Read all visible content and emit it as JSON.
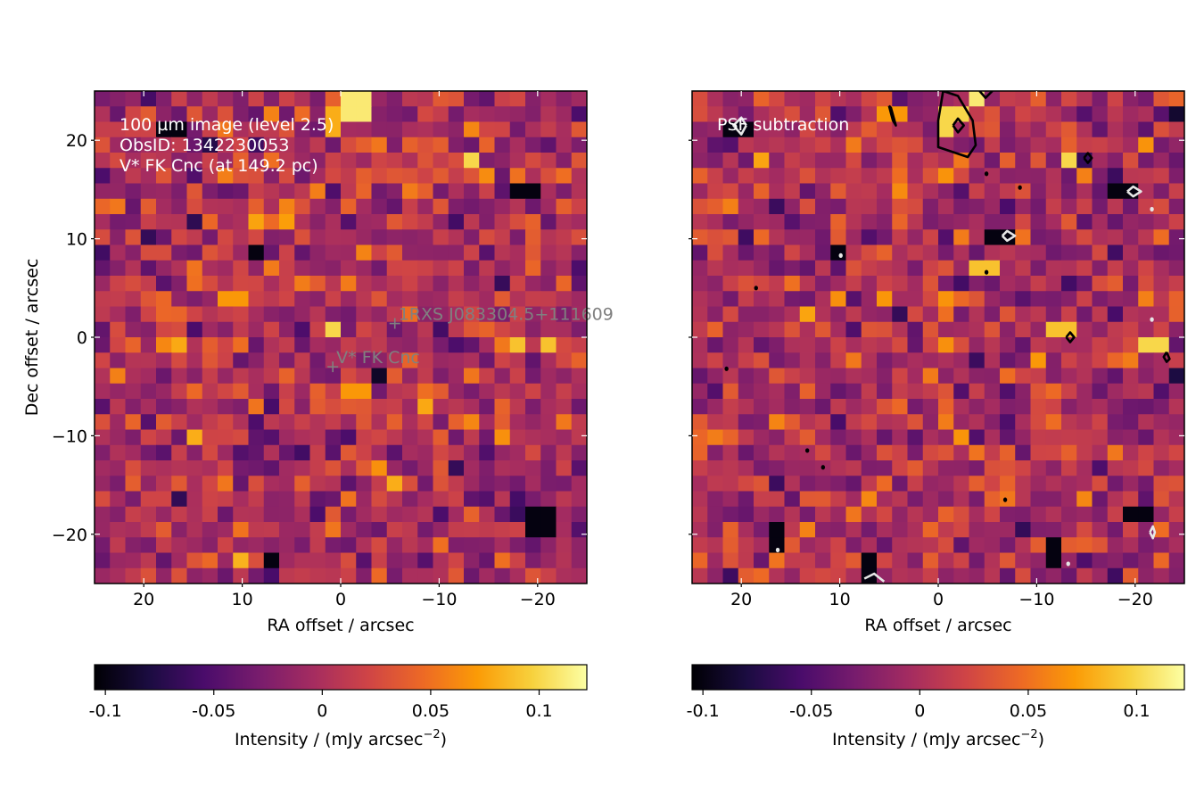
{
  "colors": {
    "inferno_stops": [
      "#000004",
      "#1b0c41",
      "#4a0c6b",
      "#781c6d",
      "#a52c60",
      "#cf4446",
      "#ed6925",
      "#fb9b06",
      "#f7d13d",
      "#fcffa4"
    ],
    "marker": "#808080",
    "annotation_text": "#ffffff",
    "contour_positive": "#000000",
    "contour_negative": "#e6e6e6"
  },
  "chart_data": [
    {
      "type": "heatmap",
      "panel": "left",
      "annotation_lines": [
        "100 µm image (level 2.5)",
        "ObsID: 1342230053",
        "V* FK Cnc (at 149.2 pc)"
      ],
      "xlabel": "RA offset / arcsec",
      "ylabel": "Dec offset / arcsec",
      "xlim": [
        25,
        -25
      ],
      "ylim": [
        -25,
        25
      ],
      "grid": "none",
      "xticks": [
        20,
        10,
        0,
        -10,
        -20
      ],
      "xtick_labels": [
        "20",
        "10",
        "0",
        "−10",
        "−20"
      ],
      "yticks": [
        20,
        10,
        0,
        -10,
        -20
      ],
      "ytick_labels": [
        "20",
        "10",
        "0",
        "−10",
        "−20"
      ],
      "pixel_size_arcsec": 1.6,
      "color_range": [
        -0.105,
        0.122
      ],
      "markers": [
        {
          "label": "1RXS J083304.5+111609",
          "x": -5.5,
          "y": 1.4
        },
        {
          "label": "V* FK Cnc",
          "x": 0.8,
          "y": -3.0
        }
      ],
      "hotspots": [
        {
          "x": -2.2,
          "y": 23.5,
          "v": 0.11
        },
        {
          "x": 0.5,
          "y": 22.0,
          "v": 0.08
        },
        {
          "x": 17.0,
          "y": 21.0,
          "v": -0.1
        },
        {
          "x": -14.5,
          "y": 17.8,
          "v": 0.1
        },
        {
          "x": -19.5,
          "y": 14.5,
          "v": -0.1
        },
        {
          "x": 8.0,
          "y": 8.0,
          "v": -0.1
        },
        {
          "x": 0.5,
          "y": 0.0,
          "v": 0.1
        },
        {
          "x": -22.5,
          "y": -1.5,
          "v": 0.09
        },
        {
          "x": -21.5,
          "y": -19.8,
          "v": -0.1
        },
        {
          "x": 6.5,
          "y": -24.0,
          "v": -0.1
        },
        {
          "x": 14.5,
          "y": -11.0,
          "v": 0.08
        },
        {
          "x": -6.0,
          "y": -16.0,
          "v": 0.08
        },
        {
          "x": 10.5,
          "y": 3.0,
          "v": 0.07
        },
        {
          "x": -2.0,
          "y": -6.0,
          "v": 0.07
        }
      ]
    },
    {
      "type": "heatmap",
      "panel": "right",
      "annotation_lines": [
        "PSF subtraction"
      ],
      "xlabel": "RA offset / arcsec",
      "ylabel": "",
      "xlim": [
        25,
        -25
      ],
      "ylim": [
        -25,
        25
      ],
      "grid": "none",
      "xticks": [
        20,
        10,
        0,
        -10,
        -20
      ],
      "xtick_labels": [
        "20",
        "10",
        "0",
        "−10",
        "−20"
      ],
      "yticks": [
        20,
        10,
        0,
        -10,
        -20
      ],
      "ytick_labels": [],
      "pixel_size_arcsec": 1.6,
      "color_range": [
        -0.105,
        0.122
      ],
      "hotspots": [
        {
          "x": -2.0,
          "y": 22.0,
          "v": 0.1
        },
        {
          "x": -4.5,
          "y": 24.5,
          "v": 0.11
        },
        {
          "x": 4.5,
          "y": 22.8,
          "v": 0.07
        },
        {
          "x": 20.0,
          "y": 21.0,
          "v": -0.1
        },
        {
          "x": -14.5,
          "y": 17.8,
          "v": 0.1
        },
        {
          "x": -19.5,
          "y": 14.5,
          "v": -0.1
        },
        {
          "x": -7.0,
          "y": 10.0,
          "v": -0.1
        },
        {
          "x": 10.0,
          "y": 8.0,
          "v": -0.1
        },
        {
          "x": -5.0,
          "y": 6.5,
          "v": 0.09
        },
        {
          "x": -13.0,
          "y": 0.0,
          "v": 0.09
        },
        {
          "x": -23.0,
          "y": -2.0,
          "v": 0.1
        },
        {
          "x": 6.5,
          "y": -24.5,
          "v": -0.1
        },
        {
          "x": 16.0,
          "y": -21.0,
          "v": -0.1
        },
        {
          "x": -21.5,
          "y": -19.5,
          "v": -0.1
        },
        {
          "x": -13.0,
          "y": -22.8,
          "v": -0.1
        }
      ],
      "contours": [
        {
          "level": "positive",
          "points": [
            [
              -0.5,
              25
            ],
            [
              -2.0,
              24.5
            ],
            [
              -3.5,
              22.0
            ],
            [
              -3.8,
              19.5
            ],
            [
              -3.0,
              18.3
            ],
            [
              0.0,
              19.3
            ],
            [
              0.0,
              22.0
            ],
            [
              -0.5,
              25
            ]
          ]
        },
        {
          "level": "positive",
          "points": [
            [
              -1.5,
              21.5
            ],
            [
              -2.0,
              22.2
            ],
            [
              -2.6,
              21.5
            ],
            [
              -2.0,
              20.8
            ],
            [
              -1.5,
              21.5
            ]
          ]
        },
        {
          "level": "positive",
          "points": [
            [
              -4.2,
              25
            ],
            [
              -4.8,
              24.3
            ],
            [
              -5.5,
              25
            ]
          ]
        },
        {
          "level": "positive",
          "points": [
            [
              5.0,
              23.5
            ],
            [
              4.6,
              22.0
            ],
            [
              4.3,
              21.5
            ],
            [
              4.8,
              23.3
            ],
            [
              5.0,
              23.5
            ]
          ]
        },
        {
          "level": "positive",
          "points": [
            [
              -14.8,
              18.2
            ],
            [
              -15.2,
              18.7
            ],
            [
              -15.6,
              18.2
            ],
            [
              -15.2,
              17.7
            ],
            [
              -14.8,
              18.2
            ]
          ]
        },
        {
          "level": "positive",
          "points": [
            [
              -13.0,
              0.0
            ],
            [
              -13.4,
              0.5
            ],
            [
              -13.8,
              0.0
            ],
            [
              -13.4,
              -0.5
            ],
            [
              -13.0,
              0.0
            ]
          ]
        },
        {
          "level": "positive",
          "points": [
            [
              -23.2,
              -1.5
            ],
            [
              -23.5,
              -2.2
            ],
            [
              -23.2,
              -2.5
            ],
            [
              -22.9,
              -2.0
            ],
            [
              -23.2,
              -1.5
            ]
          ]
        },
        {
          "level": "negative",
          "points": [
            [
              19.5,
              21.5
            ],
            [
              20.0,
              22.3
            ],
            [
              20.8,
              21.5
            ],
            [
              20.0,
              20.6
            ],
            [
              19.5,
              21.5
            ]
          ]
        },
        {
          "level": "negative",
          "points": [
            [
              -19.2,
              14.8
            ],
            [
              -19.8,
              15.3
            ],
            [
              -20.6,
              14.8
            ],
            [
              -19.8,
              14.3
            ],
            [
              -19.2,
              14.8
            ]
          ]
        },
        {
          "level": "negative",
          "points": [
            [
              -6.5,
              10.3
            ],
            [
              -7.0,
              10.8
            ],
            [
              -7.8,
              10.3
            ],
            [
              -7.0,
              9.8
            ],
            [
              -6.5,
              10.3
            ]
          ]
        },
        {
          "level": "negative",
          "points": [
            [
              7.5,
              -24.5
            ],
            [
              6.5,
              -24.0
            ],
            [
              5.5,
              -24.8
            ]
          ]
        },
        {
          "level": "negative",
          "points": [
            [
              -21.5,
              -19.8
            ],
            [
              -21.8,
              -20.4
            ],
            [
              -22.0,
              -19.8
            ],
            [
              -21.8,
              -19.2
            ],
            [
              -21.5,
              -19.8
            ]
          ]
        }
      ],
      "dots": [
        {
          "level": "positive",
          "x": 18.5,
          "y": 5.0
        },
        {
          "level": "positive",
          "x": 21.5,
          "y": -3.2
        },
        {
          "level": "positive",
          "x": 13.3,
          "y": -11.5
        },
        {
          "level": "positive",
          "x": 11.7,
          "y": -13.2
        },
        {
          "level": "positive",
          "x": -6.8,
          "y": -16.5
        },
        {
          "level": "positive",
          "x": -4.9,
          "y": 6.6
        },
        {
          "level": "positive",
          "x": -4.9,
          "y": 16.6
        },
        {
          "level": "positive",
          "x": -8.3,
          "y": 15.2
        },
        {
          "level": "negative",
          "x": 9.9,
          "y": 8.3
        },
        {
          "level": "negative",
          "x": 16.3,
          "y": -21.6
        },
        {
          "level": "negative",
          "x": -13.2,
          "y": -23.0
        },
        {
          "level": "negative",
          "x": -21.7,
          "y": 13.0
        },
        {
          "level": "negative",
          "x": -21.7,
          "y": 1.8
        }
      ]
    }
  ],
  "colorbars": [
    {
      "label": "Intensity / (mJy arcsec",
      "superscript": "−2",
      "label_close": ")",
      "ticks": [
        -0.1,
        -0.05,
        0,
        0.05,
        0.1
      ],
      "tick_labels": [
        "-0.1",
        "-0.05",
        "0",
        "0.05",
        "0.1"
      ],
      "range": [
        -0.105,
        0.122
      ]
    },
    {
      "label": "Intensity / (mJy arcsec",
      "superscript": "−2",
      "label_close": ")",
      "ticks": [
        -0.1,
        -0.05,
        0,
        0.05,
        0.1
      ],
      "tick_labels": [
        "-0.1",
        "-0.05",
        "0",
        "0.05",
        "0.1"
      ],
      "range": [
        -0.105,
        0.122
      ]
    }
  ]
}
